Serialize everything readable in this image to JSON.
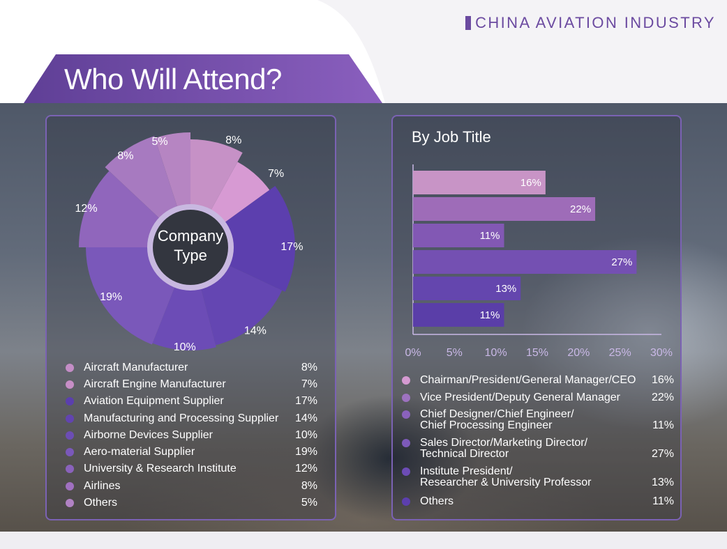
{
  "header": {
    "brand": "CHINA AVIATION INDUSTRY",
    "title": "Who Will Attend?"
  },
  "colors": {
    "accent": "#6b4aa0",
    "pie_light": "#c48dc4",
    "pie_mid": "#9c71c0",
    "pie_dark": "#5e3fae"
  },
  "chart_data": [
    {
      "type": "pie",
      "title": "Company Type",
      "categories": [
        "Aircraft Manufacturer",
        "Aircraft Engine Manufacturer",
        "Aviation Equipment Supplier",
        "Manufacturing and Processing Supplier",
        "Airborne Devices Supplier",
        "Aero-material Supplier",
        "University & Research Institute",
        "Airlines",
        "Others"
      ],
      "values": [
        8,
        7,
        17,
        14,
        10,
        19,
        12,
        8,
        5
      ],
      "value_labels": [
        "8%",
        "7%",
        "17%",
        "14%",
        "10%",
        "19%",
        "12%",
        "8%",
        "5%"
      ],
      "colors": [
        "#c691c6",
        "#d79ad3",
        "#5c3fae",
        "#6446b2",
        "#6c4cb6",
        "#7a58ba",
        "#9066bc",
        "#a77ac0",
        "#b685c2"
      ],
      "legend_colors": [
        "#c48dc6",
        "#c78ec6",
        "#5b3fae",
        "#6244b0",
        "#6c4db4",
        "#7a58ba",
        "#8a62bc",
        "#a070c0",
        "#b182c4"
      ]
    },
    {
      "type": "bar",
      "orientation": "horizontal",
      "title": "By Job Title",
      "categories": [
        "Chairman/President/General Manager/CEO",
        "Vice President/Deputy General Manager",
        "Chief Designer/Chief Engineer/\nChief Processing Engineer",
        "Sales Director/Marketing Director/\nTechnical Director",
        "Institute President/\nResearcher & University Professor",
        "Others"
      ],
      "values": [
        16,
        22,
        11,
        27,
        13,
        11
      ],
      "value_labels": [
        "16%",
        "22%",
        "11%",
        "27%",
        "13%",
        "11%"
      ],
      "xlim": [
        0,
        30
      ],
      "xticks": [
        "0%",
        "5%",
        "10%",
        "15%",
        "20%",
        "25%",
        "30%"
      ],
      "colors": [
        "#c894c6",
        "#9e6cb8",
        "#8258b4",
        "#7450b2",
        "#6446ae",
        "#5a3ea8"
      ],
      "legend_colors": [
        "#d59ad2",
        "#9d72c0",
        "#8a62bc",
        "#7d5aba",
        "#6c4cb6",
        "#5c3fae"
      ]
    }
  ]
}
